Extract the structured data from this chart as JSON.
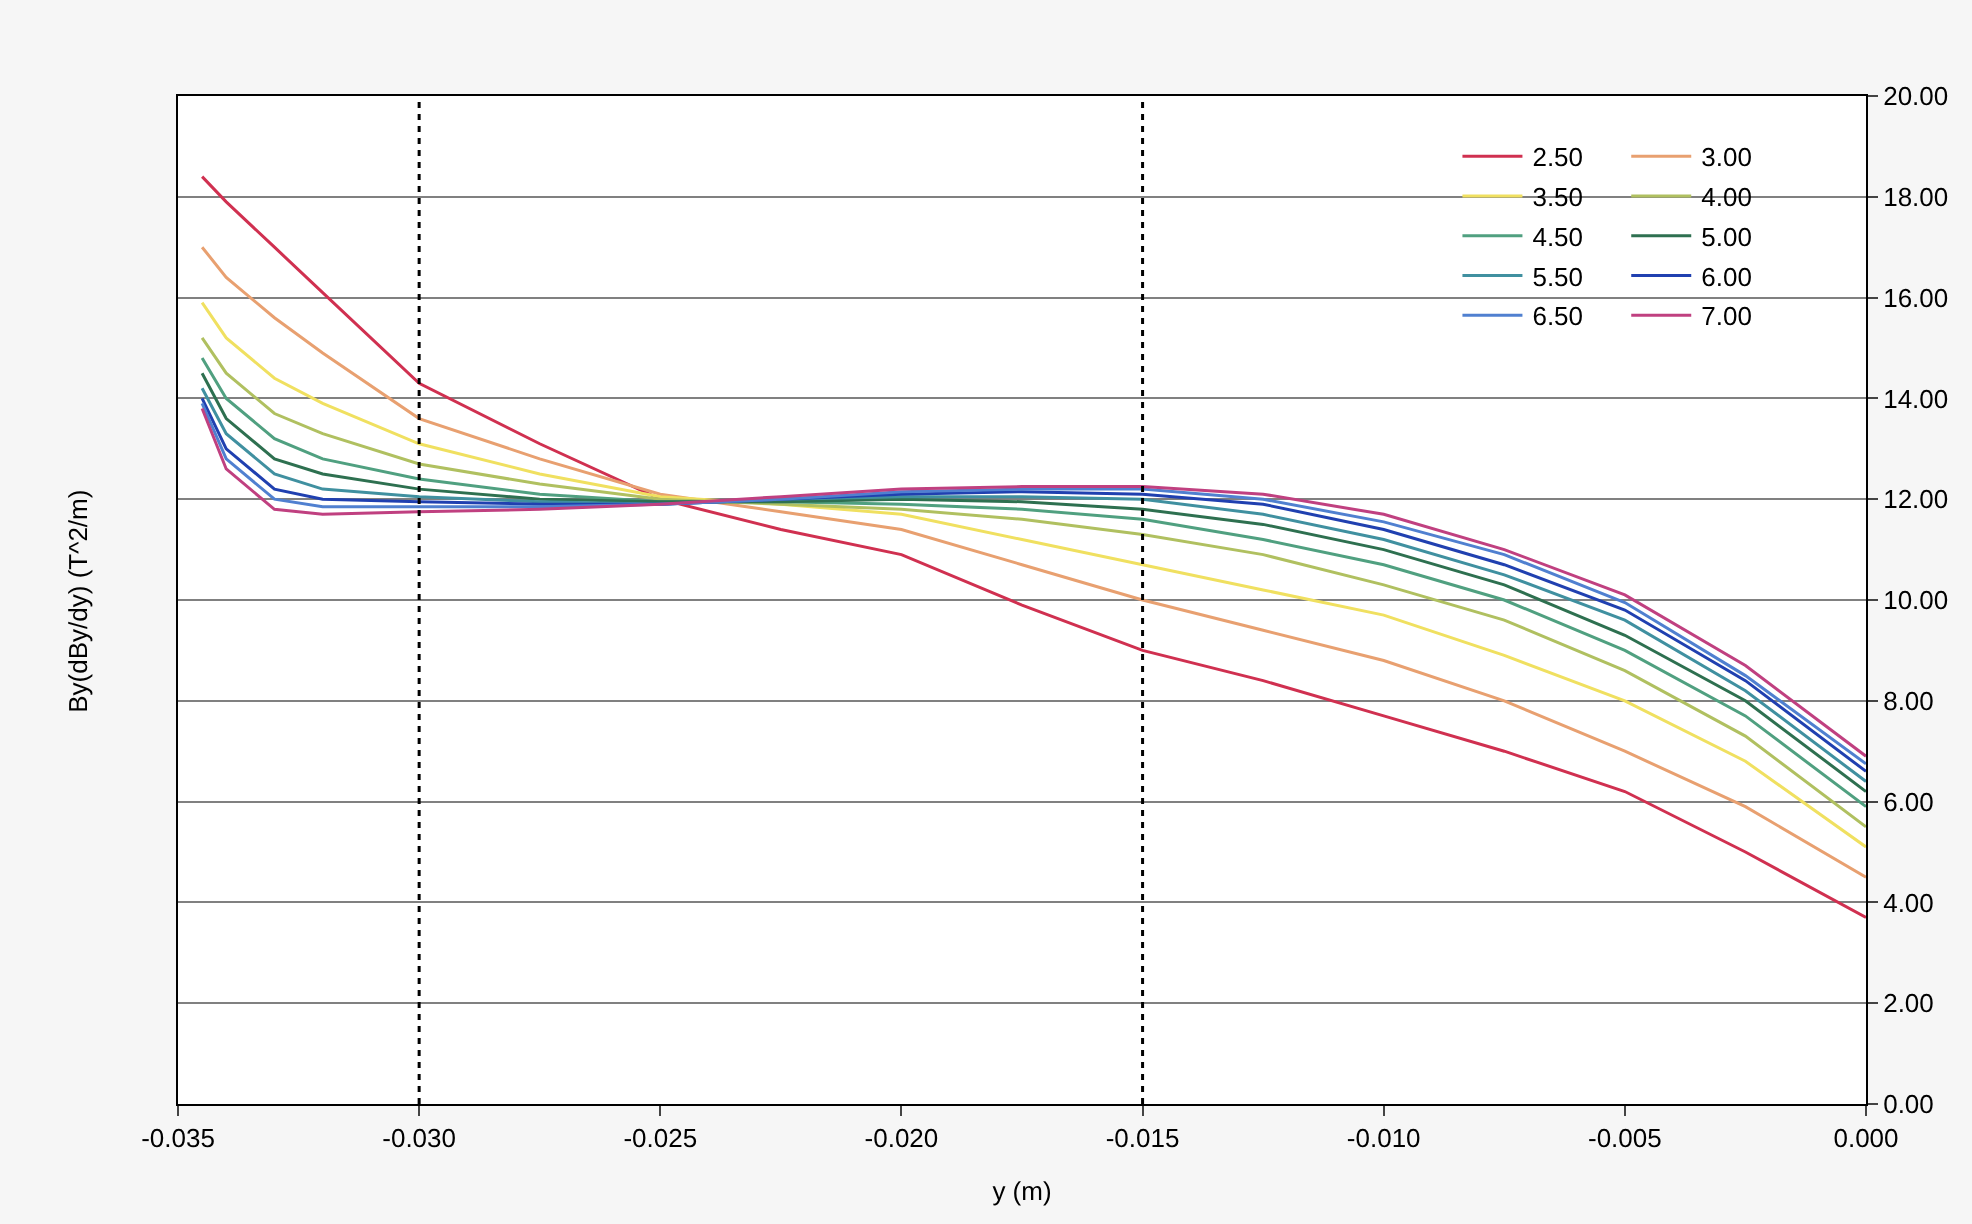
{
  "chart_data": {
    "type": "line",
    "xlabel": "y (m)",
    "ylabel": "By(dBy/dy) (T^2/m)",
    "x": [
      -0.0345,
      -0.034,
      -0.033,
      -0.032,
      -0.03,
      -0.0275,
      -0.025,
      -0.0225,
      -0.02,
      -0.0175,
      -0.015,
      -0.0125,
      -0.01,
      -0.0075,
      -0.005,
      -0.0025,
      0.0
    ],
    "series": [
      {
        "name": "2.50",
        "color": "#d03050",
        "values": [
          18.4,
          17.9,
          17.0,
          16.1,
          14.3,
          13.1,
          12.0,
          11.4,
          10.9,
          9.9,
          9.0,
          8.4,
          7.7,
          7.0,
          6.2,
          5.0,
          3.7
        ]
      },
      {
        "name": "3.00",
        "color": "#e8a070",
        "values": [
          17.0,
          16.4,
          15.6,
          14.9,
          13.6,
          12.8,
          12.1,
          11.75,
          11.4,
          10.7,
          10.0,
          9.4,
          8.8,
          8.0,
          7.0,
          5.9,
          4.5
        ]
      },
      {
        "name": "3.50",
        "color": "#f0e060",
        "values": [
          15.9,
          15.2,
          14.4,
          13.9,
          13.1,
          12.5,
          12.05,
          11.9,
          11.7,
          11.2,
          10.7,
          10.2,
          9.7,
          8.9,
          8.0,
          6.8,
          5.1
        ]
      },
      {
        "name": "4.00",
        "color": "#b0c060",
        "values": [
          15.2,
          14.5,
          13.7,
          13.3,
          12.7,
          12.3,
          12.0,
          11.9,
          11.8,
          11.6,
          11.3,
          10.9,
          10.3,
          9.6,
          8.6,
          7.3,
          5.5
        ]
      },
      {
        "name": "4.50",
        "color": "#50a080",
        "values": [
          14.8,
          14.0,
          13.2,
          12.8,
          12.4,
          12.1,
          11.95,
          11.95,
          11.9,
          11.8,
          11.6,
          11.2,
          10.7,
          10.0,
          9.0,
          7.7,
          5.9
        ]
      },
      {
        "name": "5.00",
        "color": "#2e7050",
        "values": [
          14.5,
          13.6,
          12.8,
          12.5,
          12.2,
          12.0,
          11.95,
          11.95,
          12.0,
          11.95,
          11.8,
          11.5,
          11.0,
          10.3,
          9.3,
          8.0,
          6.2
        ]
      },
      {
        "name": "5.50",
        "color": "#4090a0",
        "values": [
          14.2,
          13.3,
          12.5,
          12.2,
          12.05,
          11.95,
          11.9,
          12.0,
          12.05,
          12.05,
          12.0,
          11.7,
          11.2,
          10.5,
          9.6,
          8.2,
          6.4
        ]
      },
      {
        "name": "6.00",
        "color": "#2040b0",
        "values": [
          14.0,
          13.0,
          12.2,
          12.0,
          11.95,
          11.9,
          11.9,
          12.0,
          12.1,
          12.15,
          12.1,
          11.9,
          11.4,
          10.7,
          9.8,
          8.4,
          6.6
        ]
      },
      {
        "name": "6.50",
        "color": "#5080d0",
        "values": [
          13.9,
          12.8,
          12.0,
          11.85,
          11.85,
          11.85,
          11.9,
          12.0,
          12.15,
          12.2,
          12.2,
          12.0,
          11.55,
          10.9,
          9.95,
          8.5,
          6.75
        ]
      },
      {
        "name": "7.00",
        "color": "#c04080",
        "values": [
          13.8,
          12.6,
          11.8,
          11.7,
          11.75,
          11.8,
          11.9,
          12.05,
          12.2,
          12.25,
          12.25,
          12.1,
          11.7,
          11.0,
          10.1,
          8.7,
          6.9
        ]
      }
    ],
    "xlim": [
      -0.035,
      0.0
    ],
    "xticks": [
      {
        "value": -0.035,
        "label": "-0.035"
      },
      {
        "value": -0.03,
        "label": "-0.030"
      },
      {
        "value": -0.025,
        "label": "-0.025"
      },
      {
        "value": -0.02,
        "label": "-0.020"
      },
      {
        "value": -0.015,
        "label": "-0.015"
      },
      {
        "value": -0.01,
        "label": "-0.010"
      },
      {
        "value": -0.005,
        "label": "-0.005"
      },
      {
        "value": 0,
        "label": "0.000"
      }
    ],
    "ylim": [
      0,
      20
    ],
    "yticks": [
      {
        "value": 0,
        "label": "0.00"
      },
      {
        "value": 2,
        "label": "2.00"
      },
      {
        "value": 4,
        "label": "4.00"
      },
      {
        "value": 6,
        "label": "6.00"
      },
      {
        "value": 8,
        "label": "8.00"
      },
      {
        "value": 10,
        "label": "10.00"
      },
      {
        "value": 12,
        "label": "12.00"
      },
      {
        "value": 14,
        "label": "14.00"
      },
      {
        "value": 16,
        "label": "16.00"
      },
      {
        "value": 18,
        "label": "18.00"
      },
      {
        "value": 20,
        "label": "20.00"
      }
    ],
    "ref_lines": [
      {
        "axis": "x",
        "value": -0.03,
        "color": "#000000",
        "line_style": "dotted"
      },
      {
        "axis": "x",
        "value": -0.015,
        "color": "#000000",
        "line_style": "dotted"
      }
    ],
    "grid": "y",
    "legend": "top right",
    "marker": "none",
    "line_style": "solid"
  }
}
